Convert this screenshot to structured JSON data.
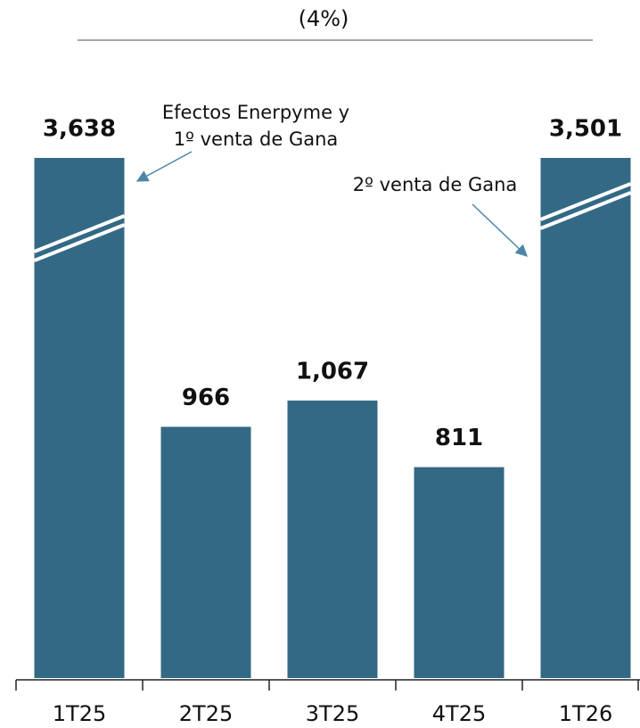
{
  "chart_data": {
    "type": "bar",
    "title": "(4%)",
    "categories": [
      "1T25",
      "2T25",
      "3T25",
      "4T25",
      "1T26"
    ],
    "values": [
      3638,
      966,
      1067,
      811,
      3501
    ],
    "value_labels": [
      "3,638",
      "966",
      "1,067",
      "811",
      "3,501"
    ],
    "color": "#336985",
    "ylim": [
      0,
      2000
    ],
    "broken_bars": true,
    "annotations": [
      [
        "Efectos Enerpyme y",
        "1º venta de Gana"
      ],
      [
        "2º venta de Gana"
      ]
    ]
  }
}
